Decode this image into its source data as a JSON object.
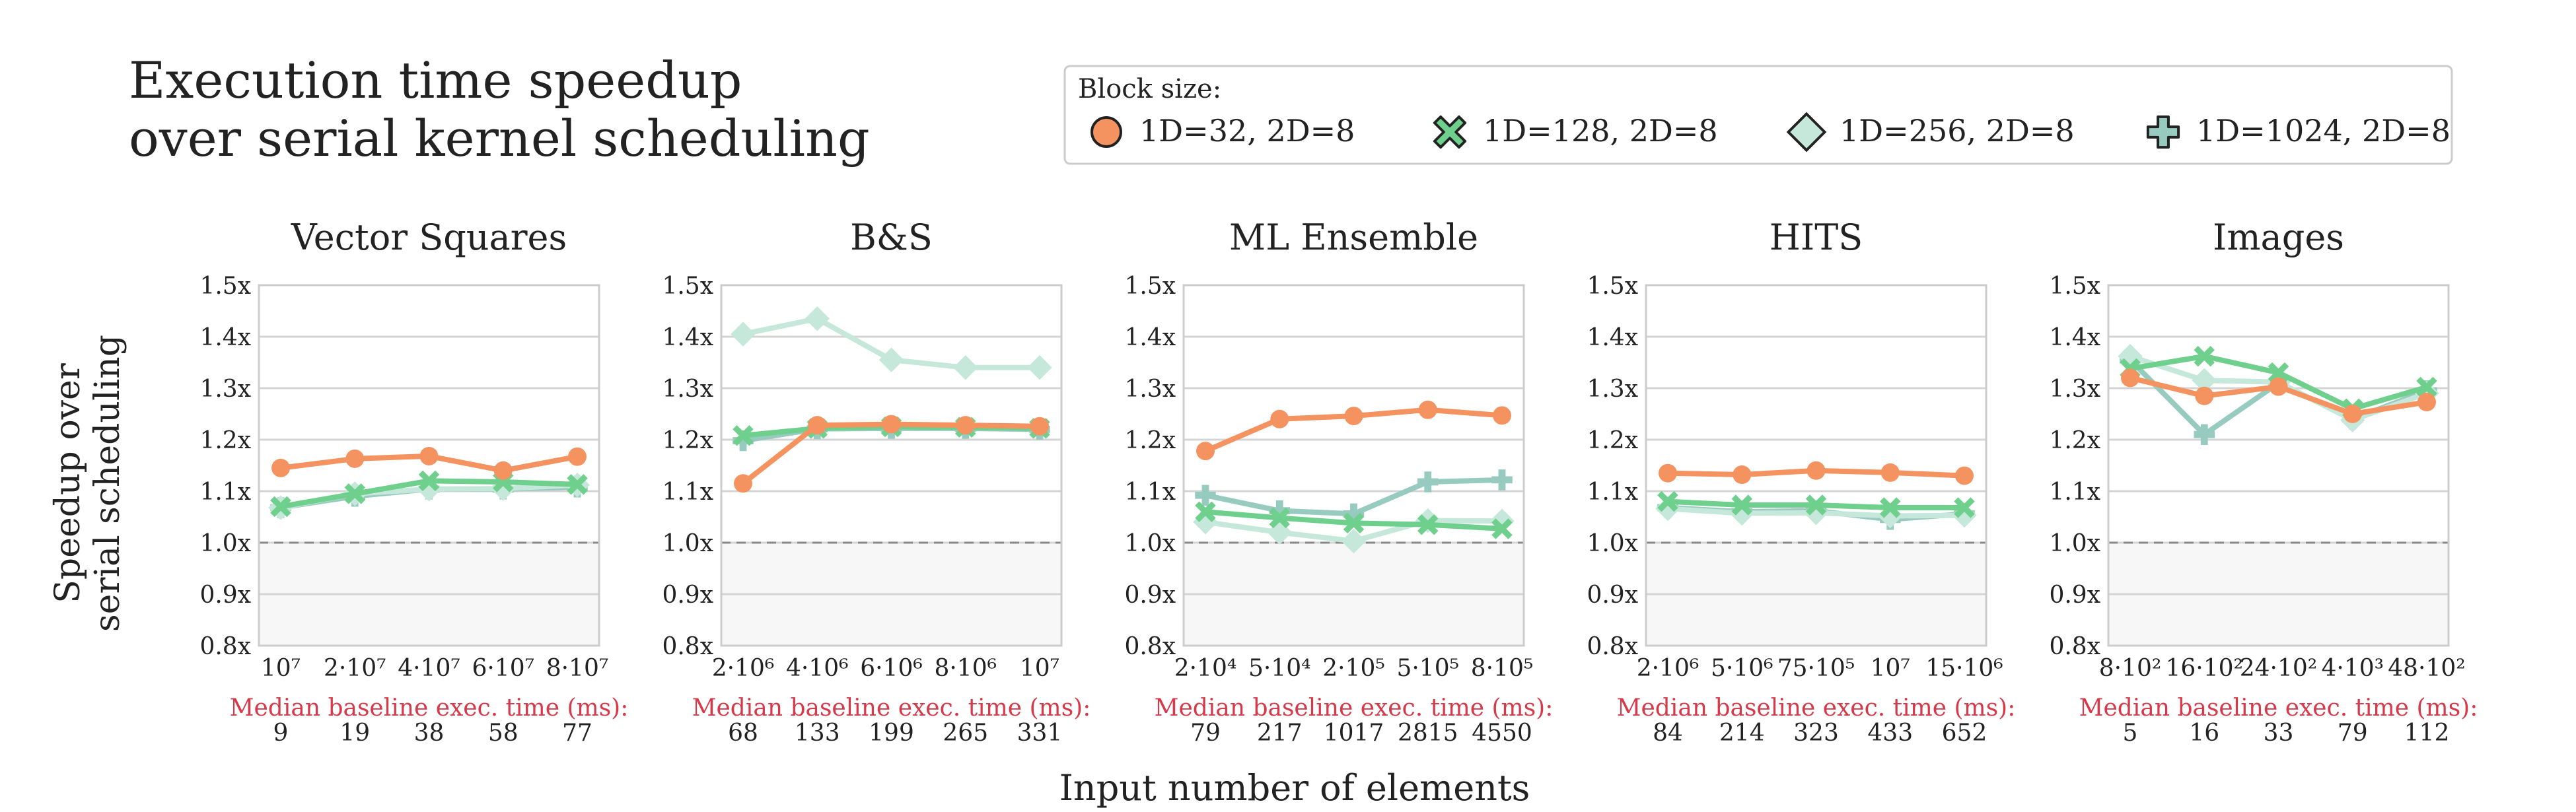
{
  "title_lines": [
    "Execution time speedup",
    "over serial kernel scheduling"
  ],
  "y_label_lines": [
    "Speedup over",
    "serial scheduling"
  ],
  "x_label": "Input number of elements",
  "baseline_label": "Median baseline exec. time (ms):",
  "legend": {
    "title": "Block size:",
    "entries": [
      {
        "label": "1D=32, 2D=8",
        "marker": "circle",
        "color": "#f4935f"
      },
      {
        "label": "1D=128, 2D=8",
        "marker": "x",
        "color": "#6fcf8c"
      },
      {
        "label": "1D=256, 2D=8",
        "marker": "diamond",
        "color": "#c6e8da"
      },
      {
        "label": "1D=1024, 2D=8",
        "marker": "plus",
        "color": "#98cbbf"
      }
    ]
  },
  "chart_data": [
    {
      "type": "line",
      "title": "Vector Squares",
      "categories": [
        "10⁷",
        "2·10⁷",
        "4·10⁷",
        "6·10⁷",
        "8·10⁷"
      ],
      "ylim": [
        0.8,
        1.5
      ],
      "yticks": [
        "0.8x",
        "0.9x",
        "1.0x",
        "1.1x",
        "1.2x",
        "1.3x",
        "1.4x",
        "1.5x"
      ],
      "reference_line": 1.0,
      "baseline_times": [
        "9",
        "19",
        "38",
        "58",
        "77"
      ],
      "series": [
        {
          "name": "1D=32, 2D=8",
          "values": [
            1.145,
            1.163,
            1.168,
            1.14,
            1.167
          ]
        },
        {
          "name": "1D=128, 2D=8",
          "values": [
            1.07,
            1.095,
            1.12,
            1.118,
            1.113
          ]
        },
        {
          "name": "1D=256, 2D=8",
          "values": [
            1.068,
            1.095,
            1.104,
            1.105,
            1.112
          ]
        },
        {
          "name": "1D=1024, 2D=8",
          "values": [
            1.068,
            1.09,
            1.104,
            1.104,
            1.108
          ]
        }
      ]
    },
    {
      "type": "line",
      "title": "B&S",
      "categories": [
        "2·10⁶",
        "4·10⁶",
        "6·10⁶",
        "8·10⁶",
        "10⁷"
      ],
      "ylim": [
        0.8,
        1.5
      ],
      "yticks": [
        "0.8x",
        "0.9x",
        "1.0x",
        "1.1x",
        "1.2x",
        "1.3x",
        "1.4x",
        "1.5x"
      ],
      "reference_line": 1.0,
      "baseline_times": [
        "68",
        "133",
        "199",
        "265",
        "331"
      ],
      "series": [
        {
          "name": "1D=32, 2D=8",
          "values": [
            1.115,
            1.228,
            1.23,
            1.228,
            1.226
          ]
        },
        {
          "name": "1D=128, 2D=8",
          "values": [
            1.208,
            1.222,
            1.225,
            1.224,
            1.222
          ]
        },
        {
          "name": "1D=256, 2D=8",
          "values": [
            1.405,
            1.435,
            1.355,
            1.34,
            1.34
          ]
        },
        {
          "name": "1D=1024, 2D=8",
          "values": [
            1.198,
            1.221,
            1.222,
            1.222,
            1.22
          ]
        }
      ]
    },
    {
      "type": "line",
      "title": "ML Ensemble",
      "categories": [
        "2·10⁴",
        "5·10⁴",
        "2·10⁵",
        "5·10⁵",
        "8·10⁵"
      ],
      "ylim": [
        0.8,
        1.5
      ],
      "yticks": [
        "0.8x",
        "0.9x",
        "1.0x",
        "1.1x",
        "1.2x",
        "1.3x",
        "1.4x",
        "1.5x"
      ],
      "reference_line": 1.0,
      "baseline_times": [
        "79",
        "217",
        "1017",
        "2815",
        "4550"
      ],
      "series": [
        {
          "name": "1D=32, 2D=8",
          "values": [
            1.178,
            1.24,
            1.246,
            1.258,
            1.247
          ]
        },
        {
          "name": "1D=128, 2D=8",
          "values": [
            1.06,
            1.048,
            1.038,
            1.035,
            1.027
          ]
        },
        {
          "name": "1D=256, 2D=8",
          "values": [
            1.04,
            1.02,
            1.003,
            1.043,
            1.042
          ]
        },
        {
          "name": "1D=1024, 2D=8",
          "values": [
            1.092,
            1.062,
            1.056,
            1.118,
            1.122
          ]
        }
      ]
    },
    {
      "type": "line",
      "title": "HITS",
      "categories": [
        "2·10⁶",
        "5·10⁶",
        "75·10⁵",
        "10⁷",
        "15·10⁶"
      ],
      "ylim": [
        0.8,
        1.5
      ],
      "yticks": [
        "0.8x",
        "0.9x",
        "1.0x",
        "1.1x",
        "1.2x",
        "1.3x",
        "1.4x",
        "1.5x"
      ],
      "reference_line": 1.0,
      "baseline_times": [
        "84",
        "214",
        "323",
        "433",
        "652"
      ],
      "series": [
        {
          "name": "1D=32, 2D=8",
          "values": [
            1.135,
            1.132,
            1.14,
            1.136,
            1.13
          ]
        },
        {
          "name": "1D=128, 2D=8",
          "values": [
            1.08,
            1.073,
            1.073,
            1.068,
            1.068
          ]
        },
        {
          "name": "1D=256, 2D=8",
          "values": [
            1.066,
            1.057,
            1.058,
            1.052,
            1.053
          ]
        },
        {
          "name": "1D=1024, 2D=8",
          "values": [
            1.068,
            1.06,
            1.062,
            1.045,
            1.056
          ]
        }
      ]
    },
    {
      "type": "line",
      "title": "Images",
      "categories": [
        "8·10²",
        "16·10²",
        "24·10²",
        "4·10³",
        "48·10²"
      ],
      "ylim": [
        0.8,
        1.5
      ],
      "yticks": [
        "0.8x",
        "0.9x",
        "1.0x",
        "1.1x",
        "1.2x",
        "1.3x",
        "1.4x",
        "1.5x"
      ],
      "reference_line": 1.0,
      "baseline_times": [
        "5",
        "16",
        "33",
        "79",
        "112"
      ],
      "series": [
        {
          "name": "1D=32, 2D=8",
          "values": [
            1.32,
            1.285,
            1.303,
            1.25,
            1.273
          ]
        },
        {
          "name": "1D=128, 2D=8",
          "values": [
            1.338,
            1.362,
            1.33,
            1.26,
            1.302
          ]
        },
        {
          "name": "1D=256, 2D=8",
          "values": [
            1.362,
            1.315,
            1.312,
            1.238,
            1.29
          ]
        },
        {
          "name": "1D=1024, 2D=8",
          "values": [
            1.355,
            1.21,
            1.31,
            1.24,
            1.295
          ]
        }
      ]
    }
  ]
}
